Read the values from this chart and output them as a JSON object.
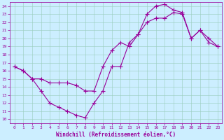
{
  "xlabel": "Windchill (Refroidissement éolien,°C)",
  "bg_color": "#cceeff",
  "plot_bg_color": "#cceeff",
  "line_color": "#990099",
  "marker": "+",
  "markersize": 4,
  "linewidth": 0.8,
  "xlim": [
    -0.5,
    23.5
  ],
  "ylim": [
    9.5,
    24.5
  ],
  "xticks": [
    0,
    1,
    2,
    3,
    4,
    5,
    6,
    7,
    8,
    9,
    10,
    11,
    12,
    13,
    14,
    15,
    16,
    17,
    18,
    19,
    20,
    21,
    22,
    23
  ],
  "yticks": [
    10,
    11,
    12,
    13,
    14,
    15,
    16,
    17,
    18,
    19,
    20,
    21,
    22,
    23,
    24
  ],
  "xlabel_fontsize": 5.5,
  "tick_fontsize": 4.5,
  "grid_color": "#99ccbb",
  "series1_x": [
    0,
    1,
    2,
    3,
    4,
    5,
    6,
    7,
    8,
    9,
    10,
    11,
    12,
    13,
    14,
    15,
    16,
    17,
    18,
    19,
    20,
    21,
    22,
    23
  ],
  "series1_y": [
    16.5,
    16.0,
    15.0,
    15.0,
    14.5,
    14.5,
    14.5,
    14.2,
    13.5,
    13.5,
    16.5,
    18.5,
    19.5,
    19.0,
    20.5,
    22.0,
    22.5,
    22.5,
    23.2,
    23.0,
    20.0,
    21.0,
    20.0,
    19.0
  ],
  "series2_x": [
    0,
    1,
    2,
    3,
    4,
    5,
    6,
    7,
    8,
    9,
    10,
    11,
    12,
    13,
    14,
    15,
    16,
    17,
    18,
    19,
    20,
    21,
    22,
    23
  ],
  "series2_y": [
    16.5,
    16.0,
    15.0,
    13.5,
    12.0,
    11.5,
    11.0,
    10.5,
    10.2,
    12.0,
    13.5,
    16.5,
    16.5,
    19.5,
    20.5,
    23.0,
    24.0,
    24.2,
    23.5,
    23.2,
    20.0,
    21.0,
    19.5,
    19.0
  ]
}
